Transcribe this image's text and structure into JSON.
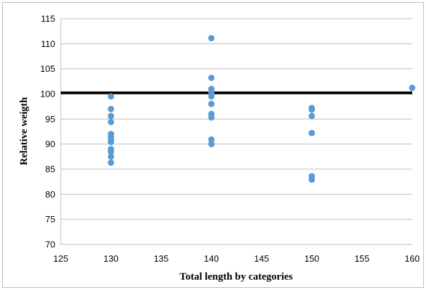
{
  "chart_data": {
    "type": "scatter",
    "title": "",
    "xlabel": "Total length by categories",
    "ylabel": "Relative weigth",
    "xlim": [
      125,
      160
    ],
    "ylim": [
      70,
      115
    ],
    "xticks": [
      "125",
      "130",
      "135",
      "140",
      "145",
      "150",
      "155",
      "160"
    ],
    "yticks": [
      "70",
      "75",
      "80",
      "85",
      "90",
      "95",
      "100",
      "105",
      "110",
      "115"
    ],
    "grid": "horizontal",
    "legend": "none",
    "colors": {
      "points": "#5b9bd5",
      "reference_line": "#000000",
      "grid": "#bfbfbf"
    },
    "reference_line": {
      "y": 100.2
    },
    "points": [
      {
        "x": 130,
        "y": 99.5
      },
      {
        "x": 130,
        "y": 97.0
      },
      {
        "x": 130,
        "y": 95.6
      },
      {
        "x": 130,
        "y": 94.4
      },
      {
        "x": 130,
        "y": 92.0
      },
      {
        "x": 130,
        "y": 91.4
      },
      {
        "x": 130,
        "y": 90.8
      },
      {
        "x": 130,
        "y": 90.4
      },
      {
        "x": 130,
        "y": 89.0
      },
      {
        "x": 130,
        "y": 88.5
      },
      {
        "x": 130,
        "y": 87.5
      },
      {
        "x": 130,
        "y": 86.3
      },
      {
        "x": 140,
        "y": 111.1
      },
      {
        "x": 140,
        "y": 103.2
      },
      {
        "x": 140,
        "y": 101.0
      },
      {
        "x": 140,
        "y": 100.3
      },
      {
        "x": 140,
        "y": 99.5
      },
      {
        "x": 140,
        "y": 98.0
      },
      {
        "x": 140,
        "y": 96.0
      },
      {
        "x": 140,
        "y": 95.3
      },
      {
        "x": 140,
        "y": 90.9
      },
      {
        "x": 140,
        "y": 90.0
      },
      {
        "x": 150,
        "y": 97.2
      },
      {
        "x": 150,
        "y": 96.9
      },
      {
        "x": 150,
        "y": 95.6
      },
      {
        "x": 150,
        "y": 92.2
      },
      {
        "x": 150,
        "y": 83.6
      },
      {
        "x": 150,
        "y": 82.9
      },
      {
        "x": 160,
        "y": 101.2
      }
    ]
  }
}
